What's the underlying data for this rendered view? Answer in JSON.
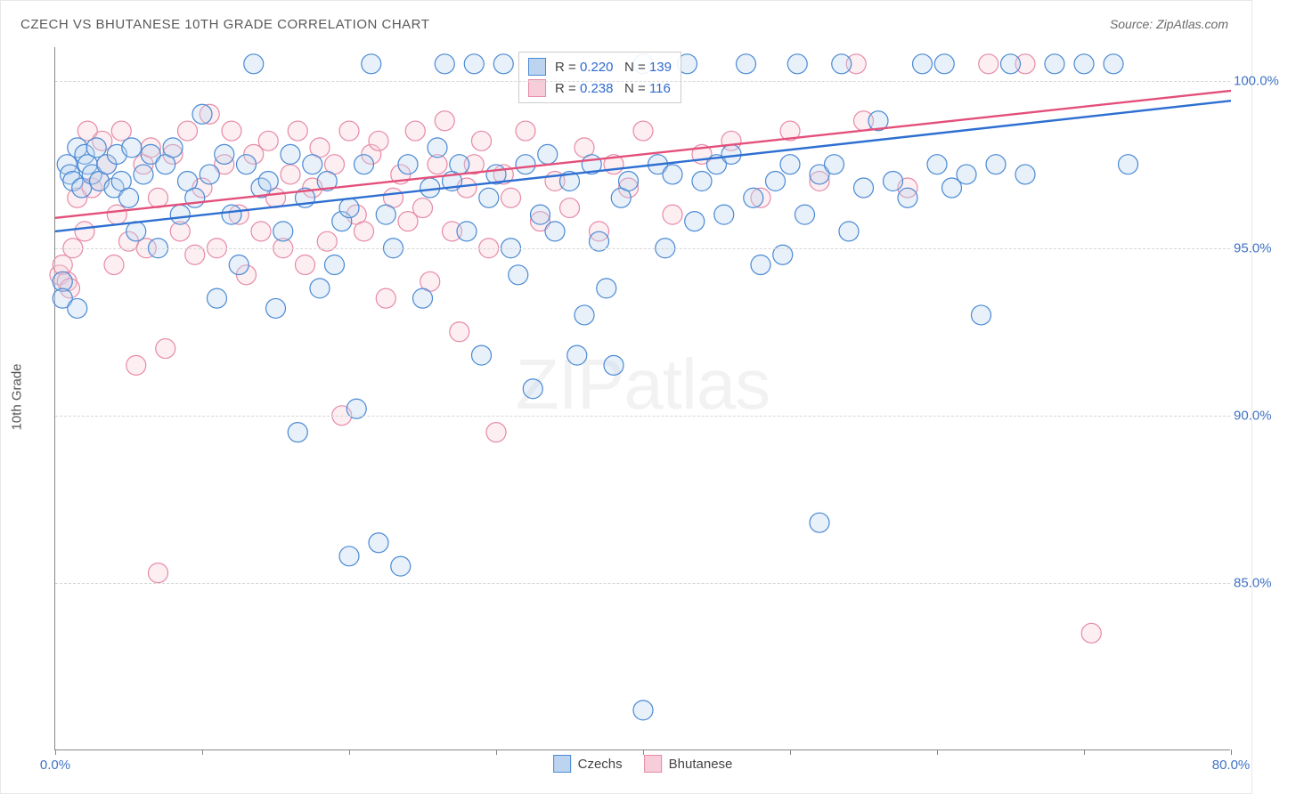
{
  "title": "CZECH VS BHUTANESE 10TH GRADE CORRELATION CHART",
  "source": "Source: ZipAtlas.com",
  "y_axis_label": "10th Grade",
  "watermark_bold": "ZIP",
  "watermark_light": "atlas",
  "chart": {
    "type": "scatter",
    "xlim": [
      0,
      80
    ],
    "ylim": [
      80,
      101
    ],
    "x_ticks": [
      0,
      10,
      20,
      30,
      40,
      50,
      60,
      70,
      80
    ],
    "x_tick_labels": {
      "0": "0.0%",
      "80": "80.0%"
    },
    "y_ticks": [
      85,
      90,
      95,
      100
    ],
    "y_tick_labels": {
      "85": "85.0%",
      "90": "90.0%",
      "95": "95.0%",
      "100": "100.0%"
    },
    "grid_color": "#d6d6d6",
    "background_color": "#ffffff",
    "axis_color": "#888888",
    "tick_label_color": "#3f73c4",
    "marker_radius": 11,
    "marker_stroke_width": 1.2,
    "marker_fill_opacity": 0.35,
    "trend_line_width": 2.4,
    "series": [
      {
        "name": "Czechs",
        "fill_color": "#bcd4ef",
        "stroke_color": "#4a8ad4",
        "line_color": "#2e6fd1",
        "R": "0.220",
        "N": "139",
        "trend": {
          "x1": 0,
          "y1": 95.5,
          "x2": 80,
          "y2": 99.4
        },
        "points": [
          [
            0.5,
            94.0
          ],
          [
            0.5,
            93.5
          ],
          [
            0.8,
            97.5
          ],
          [
            1.0,
            97.2
          ],
          [
            1.2,
            97.0
          ],
          [
            1.5,
            98.0
          ],
          [
            1.5,
            93.2
          ],
          [
            1.8,
            96.8
          ],
          [
            2.0,
            97.8
          ],
          [
            2.2,
            97.5
          ],
          [
            2.5,
            97.2
          ],
          [
            2.8,
            98.0
          ],
          [
            3.0,
            97.0
          ],
          [
            3.5,
            97.5
          ],
          [
            4.0,
            96.8
          ],
          [
            4.2,
            97.8
          ],
          [
            4.5,
            97.0
          ],
          [
            5.0,
            96.5
          ],
          [
            5.2,
            98.0
          ],
          [
            5.5,
            95.5
          ],
          [
            6.0,
            97.2
          ],
          [
            6.5,
            97.8
          ],
          [
            7.0,
            95.0
          ],
          [
            7.5,
            97.5
          ],
          [
            8.0,
            98.0
          ],
          [
            8.5,
            96.0
          ],
          [
            9.0,
            97.0
          ],
          [
            9.5,
            96.5
          ],
          [
            10.0,
            99.0
          ],
          [
            10.5,
            97.2
          ],
          [
            11.0,
            93.5
          ],
          [
            11.5,
            97.8
          ],
          [
            12.0,
            96.0
          ],
          [
            12.5,
            94.5
          ],
          [
            13.0,
            97.5
          ],
          [
            13.5,
            100.5
          ],
          [
            14.0,
            96.8
          ],
          [
            14.5,
            97.0
          ],
          [
            15.0,
            93.2
          ],
          [
            15.5,
            95.5
          ],
          [
            16.0,
            97.8
          ],
          [
            16.5,
            89.5
          ],
          [
            17.0,
            96.5
          ],
          [
            17.5,
            97.5
          ],
          [
            18.0,
            93.8
          ],
          [
            18.5,
            97.0
          ],
          [
            19.0,
            94.5
          ],
          [
            19.5,
            95.8
          ],
          [
            20.0,
            96.2
          ],
          [
            20.0,
            85.8
          ],
          [
            20.5,
            90.2
          ],
          [
            21.0,
            97.5
          ],
          [
            21.5,
            100.5
          ],
          [
            22.0,
            86.2
          ],
          [
            22.5,
            96.0
          ],
          [
            23.0,
            95.0
          ],
          [
            23.5,
            85.5
          ],
          [
            24.0,
            97.5
          ],
          [
            25.0,
            93.5
          ],
          [
            25.5,
            96.8
          ],
          [
            26.0,
            98.0
          ],
          [
            26.5,
            100.5
          ],
          [
            27.0,
            97.0
          ],
          [
            27.5,
            97.5
          ],
          [
            28.0,
            95.5
          ],
          [
            28.5,
            100.5
          ],
          [
            29.0,
            91.8
          ],
          [
            29.5,
            96.5
          ],
          [
            30.0,
            97.2
          ],
          [
            30.5,
            100.5
          ],
          [
            31.0,
            95.0
          ],
          [
            31.5,
            94.2
          ],
          [
            32.0,
            97.5
          ],
          [
            32.5,
            90.8
          ],
          [
            33.0,
            96.0
          ],
          [
            33.5,
            97.8
          ],
          [
            34.0,
            95.5
          ],
          [
            38.0,
            91.5
          ],
          [
            35.0,
            97.0
          ],
          [
            35.5,
            91.8
          ],
          [
            36.0,
            93.0
          ],
          [
            36.5,
            97.5
          ],
          [
            37.0,
            95.2
          ],
          [
            37.5,
            93.8
          ],
          [
            38.5,
            96.5
          ],
          [
            39.0,
            97.0
          ],
          [
            40.0,
            100.5
          ],
          [
            40.0,
            81.2
          ],
          [
            41.0,
            97.5
          ],
          [
            41.5,
            95.0
          ],
          [
            42.0,
            97.2
          ],
          [
            43.0,
            100.5
          ],
          [
            43.5,
            95.8
          ],
          [
            44.0,
            97.0
          ],
          [
            45.0,
            97.5
          ],
          [
            45.5,
            96.0
          ],
          [
            46.0,
            97.8
          ],
          [
            47.0,
            100.5
          ],
          [
            47.5,
            96.5
          ],
          [
            48.0,
            94.5
          ],
          [
            49.0,
            97.0
          ],
          [
            49.5,
            94.8
          ],
          [
            50.0,
            97.5
          ],
          [
            50.5,
            100.5
          ],
          [
            51.0,
            96.0
          ],
          [
            52.0,
            97.2
          ],
          [
            52.0,
            86.8
          ],
          [
            53.0,
            97.5
          ],
          [
            53.5,
            100.5
          ],
          [
            54.0,
            95.5
          ],
          [
            55.0,
            96.8
          ],
          [
            56.0,
            98.8
          ],
          [
            57.0,
            97.0
          ],
          [
            58.0,
            96.5
          ],
          [
            59.0,
            100.5
          ],
          [
            60.0,
            97.5
          ],
          [
            60.5,
            100.5
          ],
          [
            61.0,
            96.8
          ],
          [
            62.0,
            97.2
          ],
          [
            63.0,
            93.0
          ],
          [
            64.0,
            97.5
          ],
          [
            65.0,
            100.5
          ],
          [
            66.0,
            97.2
          ],
          [
            68.0,
            100.5
          ],
          [
            70.0,
            100.5
          ],
          [
            72.0,
            100.5
          ],
          [
            73.0,
            97.5
          ]
        ]
      },
      {
        "name": "Bhutanese",
        "fill_color": "#f6cdd8",
        "stroke_color": "#e78aa8",
        "line_color": "#e34f7a",
        "R": "0.238",
        "N": "116",
        "trend": {
          "x1": 0,
          "y1": 95.9,
          "x2": 80,
          "y2": 99.7
        },
        "points": [
          [
            0.3,
            94.2
          ],
          [
            0.5,
            94.5
          ],
          [
            0.8,
            94.0
          ],
          [
            1.0,
            93.8
          ],
          [
            1.2,
            95.0
          ],
          [
            1.5,
            96.5
          ],
          [
            2.0,
            95.5
          ],
          [
            2.2,
            98.5
          ],
          [
            2.5,
            96.8
          ],
          [
            3.0,
            97.0
          ],
          [
            3.2,
            98.2
          ],
          [
            3.5,
            97.5
          ],
          [
            4.0,
            94.5
          ],
          [
            4.2,
            96.0
          ],
          [
            4.5,
            98.5
          ],
          [
            5.0,
            95.2
          ],
          [
            5.5,
            91.5
          ],
          [
            6.0,
            97.5
          ],
          [
            6.2,
            95.0
          ],
          [
            6.5,
            98.0
          ],
          [
            7.0,
            96.5
          ],
          [
            7.5,
            92.0
          ],
          [
            8.0,
            97.8
          ],
          [
            8.5,
            95.5
          ],
          [
            9.0,
            98.5
          ],
          [
            9.5,
            94.8
          ],
          [
            10.0,
            96.8
          ],
          [
            10.5,
            99.0
          ],
          [
            11.0,
            95.0
          ],
          [
            11.5,
            97.5
          ],
          [
            12.0,
            98.5
          ],
          [
            12.5,
            96.0
          ],
          [
            13.0,
            94.2
          ],
          [
            13.5,
            97.8
          ],
          [
            14.0,
            95.5
          ],
          [
            14.5,
            98.2
          ],
          [
            15.0,
            96.5
          ],
          [
            15.5,
            95.0
          ],
          [
            16.0,
            97.2
          ],
          [
            16.5,
            98.5
          ],
          [
            17.0,
            94.5
          ],
          [
            17.5,
            96.8
          ],
          [
            18.0,
            98.0
          ],
          [
            18.5,
            95.2
          ],
          [
            19.0,
            97.5
          ],
          [
            19.5,
            90.0
          ],
          [
            20.0,
            98.5
          ],
          [
            20.5,
            96.0
          ],
          [
            21.0,
            95.5
          ],
          [
            21.5,
            97.8
          ],
          [
            22.0,
            98.2
          ],
          [
            22.5,
            93.5
          ],
          [
            23.0,
            96.5
          ],
          [
            23.5,
            97.2
          ],
          [
            24.0,
            95.8
          ],
          [
            24.5,
            98.5
          ],
          [
            25.0,
            96.2
          ],
          [
            25.5,
            94.0
          ],
          [
            26.0,
            97.5
          ],
          [
            26.5,
            98.8
          ],
          [
            27.0,
            95.5
          ],
          [
            27.5,
            92.5
          ],
          [
            28.0,
            96.8
          ],
          [
            28.5,
            97.5
          ],
          [
            29.0,
            98.2
          ],
          [
            29.5,
            95.0
          ],
          [
            30.0,
            89.5
          ],
          [
            30.5,
            97.2
          ],
          [
            31.0,
            96.5
          ],
          [
            32.0,
            98.5
          ],
          [
            33.0,
            95.8
          ],
          [
            34.0,
            97.0
          ],
          [
            35.0,
            96.2
          ],
          [
            36.0,
            98.0
          ],
          [
            37.0,
            95.5
          ],
          [
            38.0,
            97.5
          ],
          [
            39.0,
            96.8
          ],
          [
            40.0,
            98.5
          ],
          [
            42.0,
            96.0
          ],
          [
            44.0,
            97.8
          ],
          [
            46.0,
            98.2
          ],
          [
            48.0,
            96.5
          ],
          [
            50.0,
            98.5
          ],
          [
            52.0,
            97.0
          ],
          [
            55.0,
            98.8
          ],
          [
            58.0,
            96.8
          ],
          [
            7.0,
            85.3
          ],
          [
            54.5,
            100.5
          ],
          [
            66.0,
            100.5
          ],
          [
            63.5,
            100.5
          ],
          [
            70.5,
            83.5
          ]
        ]
      }
    ]
  },
  "legend": {
    "series1_label": "Czechs",
    "series2_label": "Bhutanese",
    "r_prefix": "R = ",
    "n_prefix": "N = "
  }
}
